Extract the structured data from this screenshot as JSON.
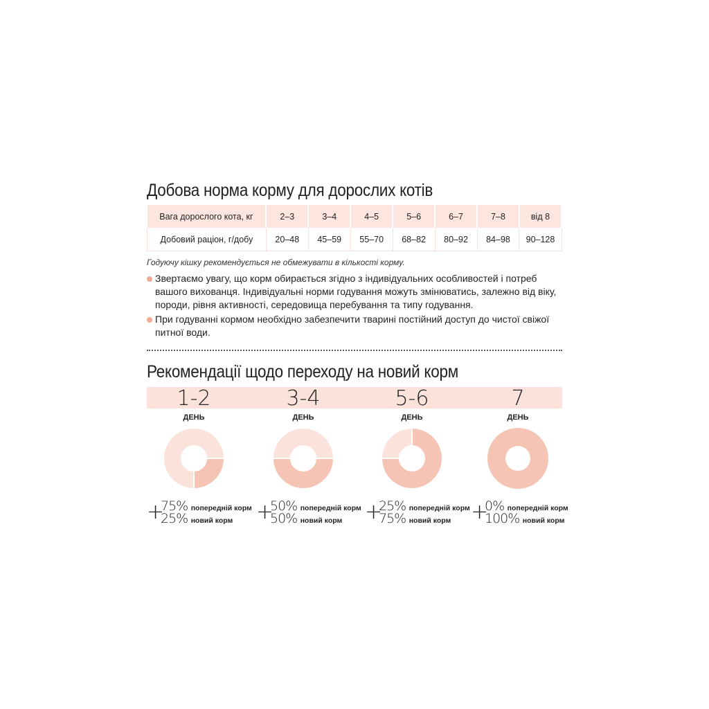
{
  "section1": {
    "title": "Добова норма корму для дорослих котів",
    "table": {
      "header": [
        "Вага дорослого кота, кг",
        "2–3",
        "3–4",
        "4–5",
        "5–6",
        "6–7",
        "7–8",
        "від 8"
      ],
      "row": [
        "Добовий раціон, г/добу",
        "20–48",
        "45–59",
        "55–70",
        "68–82",
        "80–92",
        "84–98",
        "90–128"
      ]
    },
    "note": "Годуючу кішку рекомендується не обмежувати в кількості корму.",
    "bullets": [
      "Звертаємо увагу, що корм обирається згідно з індивідуальних особливостей і потреб вашого вихованця. Індивідуальні норми годування можуть змінюватись, залежно від віку, породи, рівня активності, середовища перебування та типу годування.",
      "При годуванні кормом необхідно забезпечити тварині постійний доступ до чистої свіжої питної води."
    ]
  },
  "section2": {
    "title": "Рекомендації щодо переходу на новий корм",
    "day_label": "ДЕНЬ",
    "old_label": "попередній корм",
    "new_label": "новий корм",
    "plus": "+",
    "stages": [
      {
        "days": "1-2",
        "old": "75%",
        "new": "25%",
        "new_fraction": 0.25
      },
      {
        "days": "3-4",
        "old": "50%",
        "new": "50%",
        "new_fraction": 0.5
      },
      {
        "days": "5-6",
        "old": "25%",
        "new": "75%",
        "new_fraction": 0.75
      },
      {
        "days": "7",
        "old": "0%",
        "new": "100%",
        "new_fraction": 1.0
      }
    ]
  },
  "colors": {
    "light": "#fbe3dc",
    "dark": "#f6c4b5",
    "bullet": "#f2aa99"
  }
}
